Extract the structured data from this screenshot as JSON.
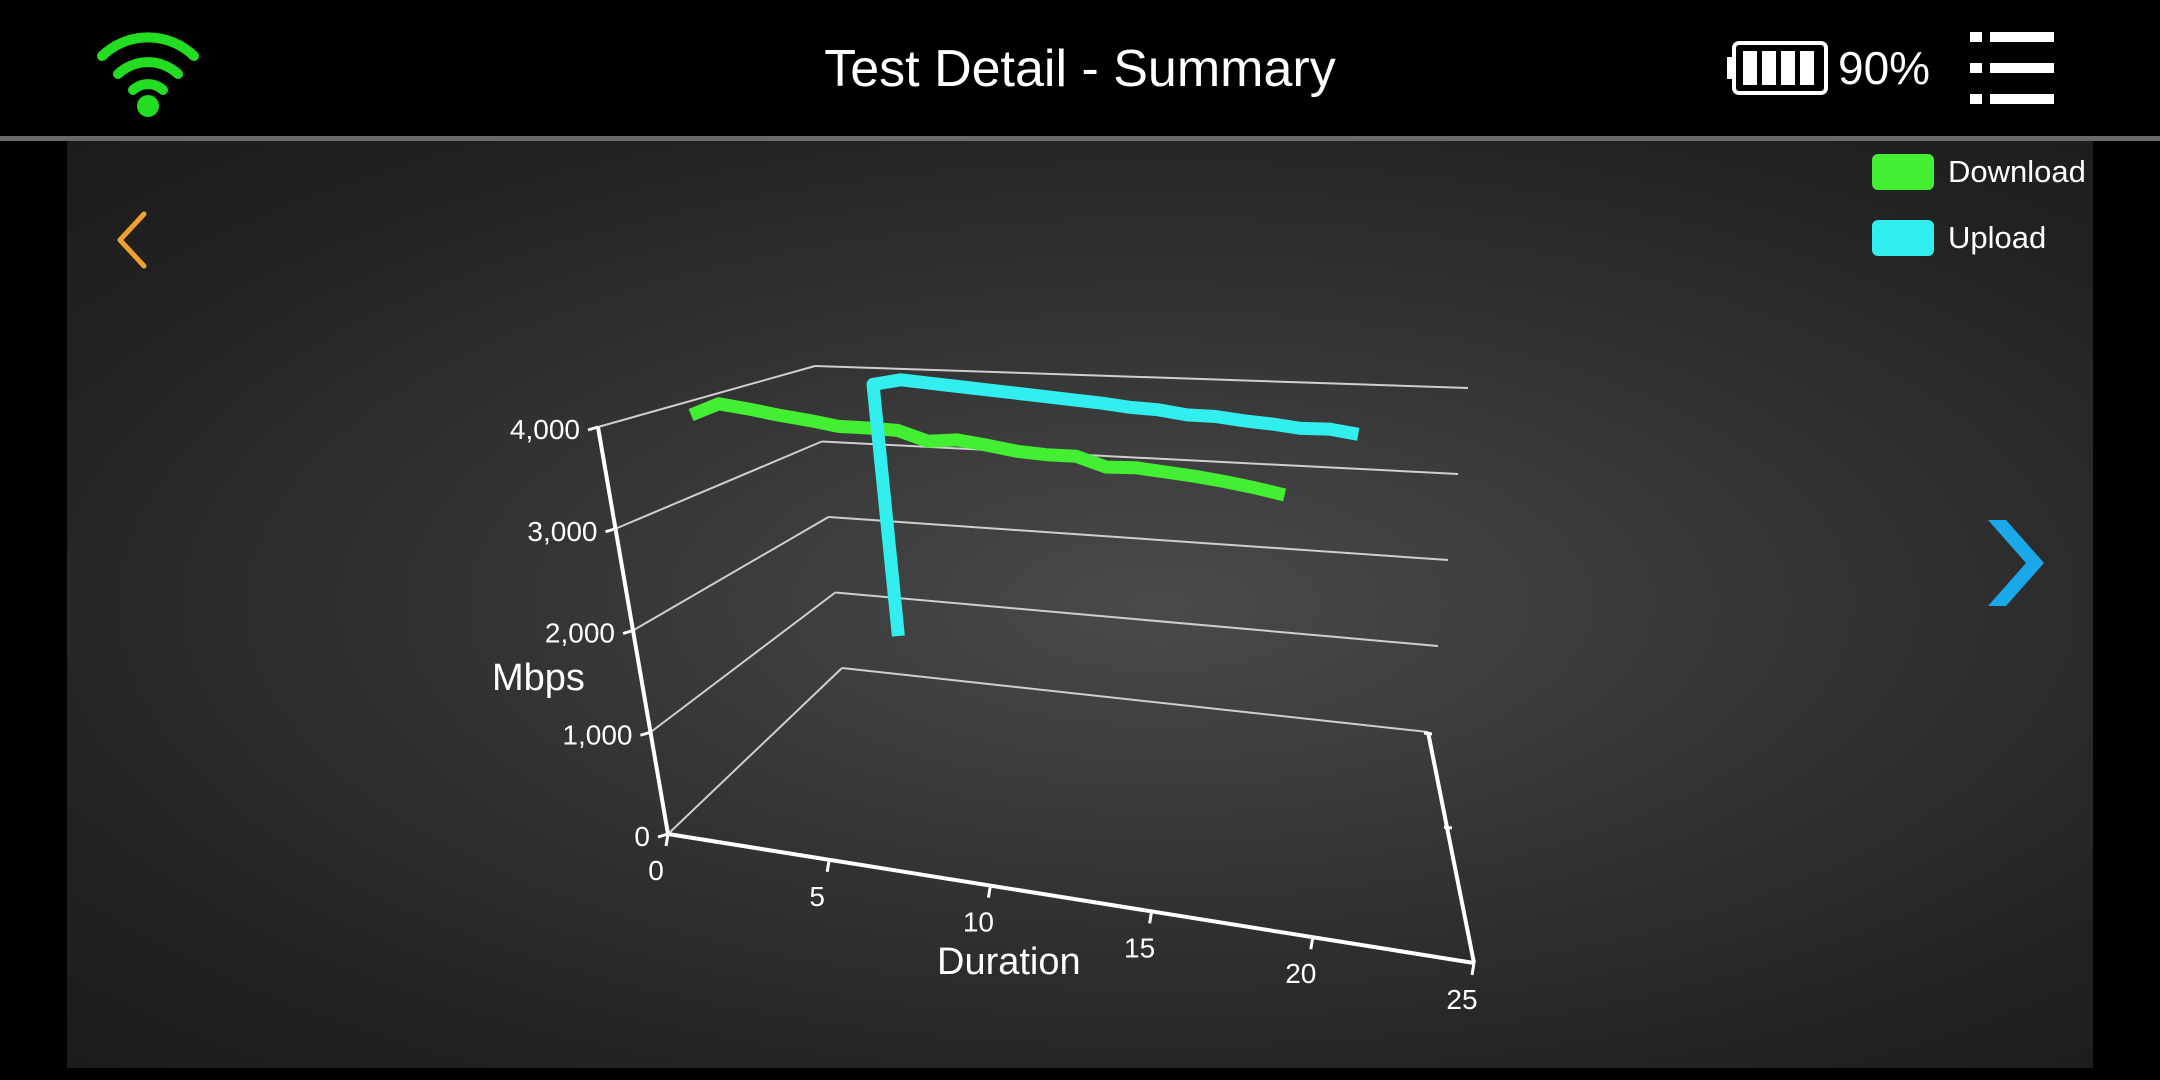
{
  "header": {
    "title": "Test Detail - Summary",
    "battery_level": "90%",
    "icons": {
      "wifi": "wifi-icon",
      "battery": "battery-icon",
      "menu": "menu-icon"
    }
  },
  "navigation": {
    "back_icon": "chevron-left-icon",
    "next_icon": "chevron-right-icon"
  },
  "colors": {
    "download": "#44ee33",
    "upload": "#33eeee",
    "wifi": "#22dd22",
    "back_arrow": "#f0a030",
    "next_arrow": "#1aa8e8",
    "background": "#000000"
  },
  "legend": [
    {
      "label": "Download",
      "color": "#44ee33"
    },
    {
      "label": "Upload",
      "color": "#33eeee"
    }
  ],
  "chart_data": {
    "type": "line",
    "style": "3d",
    "title": "",
    "xlabel": "Duration",
    "ylabel": "Mbps",
    "xlim": [
      0,
      25
    ],
    "ylim": [
      0,
      4000
    ],
    "x_ticks": [
      "0",
      "5",
      "10",
      "15",
      "20",
      "25"
    ],
    "y_ticks": [
      "0",
      "1,000",
      "2,000",
      "3,000",
      "4,000"
    ],
    "grid": true,
    "legend_position": "top-right",
    "series": [
      {
        "name": "Download",
        "color": "#44ee33",
        "x": [
          0,
          1,
          2,
          3,
          4,
          5,
          6,
          7,
          8,
          9,
          10,
          11,
          12,
          13,
          14,
          15,
          16,
          17,
          18,
          19,
          20
        ],
        "values": [
          3850,
          4010,
          3990,
          3960,
          3940,
          3910,
          3930,
          3940,
          3860,
          3910,
          3890,
          3860,
          3860,
          3880,
          3800,
          3830,
          3820,
          3810,
          3790,
          3760,
          3720
        ]
      },
      {
        "name": "Upload",
        "color": "#33eeee",
        "x": [
          5,
          5,
          6,
          7,
          8,
          9,
          10,
          11,
          12,
          13,
          14,
          15,
          16,
          17,
          18,
          19,
          20,
          21,
          22
        ],
        "values": [
          1300,
          4200,
          4280,
          4270,
          4260,
          4250,
          4240,
          4230,
          4220,
          4210,
          4190,
          4190,
          4160,
          4170,
          4150,
          4140,
          4120,
          4140,
          4110
        ]
      }
    ]
  }
}
